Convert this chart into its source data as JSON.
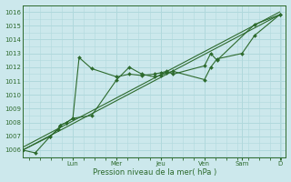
{
  "xlabel": "Pression niveau de la mer( hPa )",
  "bg_color": "#cce8ec",
  "line_color": "#2d6a2d",
  "grid_color": "#b0d8dc",
  "ylim": [
    1005.5,
    1016.5
  ],
  "yticks": [
    1006,
    1007,
    1008,
    1009,
    1010,
    1011,
    1012,
    1013,
    1014,
    1015,
    1016
  ],
  "day_labels": [
    "Lun",
    "Mer",
    "Jeu",
    "Ven",
    "Sam",
    "D"
  ],
  "xlim": [
    0,
    21
  ],
  "day_x": [
    4.0,
    7.5,
    11.0,
    14.5,
    17.5,
    20.5
  ],
  "line1_x": [
    0,
    1,
    2.2,
    2.8,
    3.0,
    3.5,
    4.0,
    5.5,
    7.5,
    8.5,
    9.5,
    10.5,
    11.0,
    11.5,
    12.0,
    14.5,
    15.0,
    15.5,
    17.5,
    18.5,
    20.5
  ],
  "line1_y": [
    1006.0,
    1005.8,
    1007.0,
    1007.5,
    1007.8,
    1008.0,
    1008.3,
    1008.5,
    1011.1,
    1012.0,
    1011.5,
    1011.3,
    1011.4,
    1011.6,
    1011.7,
    1011.1,
    1012.0,
    1012.6,
    1013.0,
    1014.3,
    1015.8
  ],
  "line2_x": [
    0,
    2.2,
    2.8,
    3.0,
    3.5,
    4.0,
    4.5,
    5.5,
    7.5,
    8.5,
    9.5,
    10.5,
    11.0,
    11.5,
    12.0,
    14.5,
    15.0,
    15.5,
    18.5,
    20.5
  ],
  "line2_y": [
    1006.0,
    1007.0,
    1007.5,
    1007.8,
    1008.0,
    1008.3,
    1012.7,
    1011.9,
    1011.3,
    1011.5,
    1011.4,
    1011.5,
    1011.6,
    1011.7,
    1011.5,
    1012.1,
    1013.0,
    1012.5,
    1015.1,
    1015.8
  ],
  "trend1_x": [
    0,
    20.5
  ],
  "trend1_y": [
    1006.0,
    1015.8
  ],
  "trend2_x": [
    0,
    20.5
  ],
  "trend2_y": [
    1006.2,
    1016.0
  ]
}
